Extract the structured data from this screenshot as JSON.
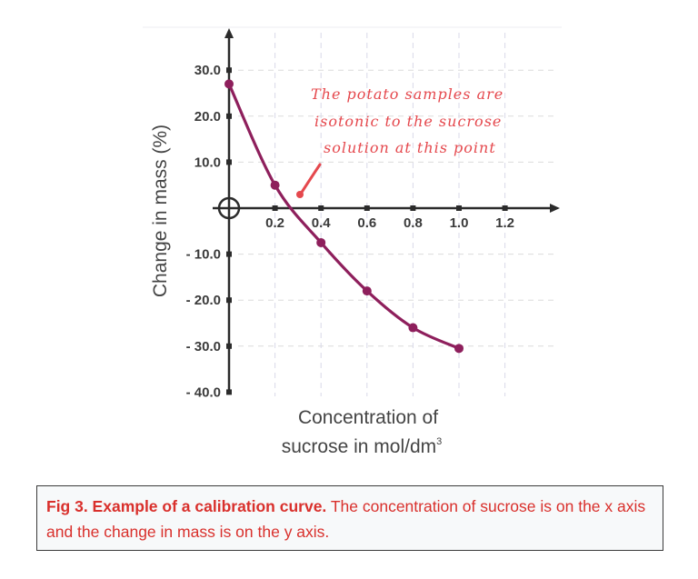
{
  "chart_data": {
    "type": "line",
    "title": "",
    "xlabel": "Concentration of sucrose in mol/dm³",
    "xlabel_lines": [
      "Concentration of",
      "sucrose in mol/dm"
    ],
    "xlabel_superscript": "3",
    "ylabel": "Change in mass (%)",
    "x_ticks": [
      "0.2",
      "0.4",
      "0.6",
      "0.8",
      "1.0",
      "1.2"
    ],
    "y_ticks": [
      "30.0",
      "20.0",
      "10.0",
      "- 10.0",
      "- 20.0",
      "- 30.0",
      "- 40.0"
    ],
    "xlim": [
      0,
      1.4
    ],
    "ylim": [
      -40,
      35
    ],
    "grid": true,
    "series": [
      {
        "name": "Change in mass",
        "color": "#8e1f5c",
        "x": [
          0.0,
          0.2,
          0.4,
          0.6,
          0.8,
          1.0
        ],
        "y": [
          27.0,
          5.0,
          -7.5,
          -18.0,
          -26.0,
          -30.5
        ]
      }
    ],
    "annotations": [
      {
        "text_lines": [
          "The potato samples are",
          "isotonic to the sucrose",
          "solution at this point"
        ],
        "color": "#e5484d",
        "points_to": {
          "x": 0.27,
          "y": 0
        }
      }
    ],
    "origin_marker": "circle-crosshair"
  },
  "caption": {
    "bold": "Fig 3. Example of a calibration curve.",
    "text": " The concentration of sucrose is on the x axis and the change in mass is on the y axis."
  }
}
